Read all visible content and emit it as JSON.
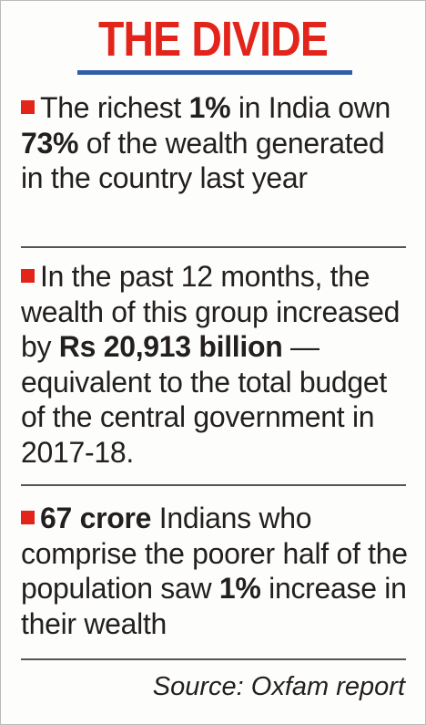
{
  "header": {
    "title": "THE DIVIDE"
  },
  "items": [
    {
      "segments": [
        {
          "text": "The richest ",
          "bold": false
        },
        {
          "text": "1%",
          "bold": true
        },
        {
          "text": " in India own ",
          "bold": false
        },
        {
          "text": "73%",
          "bold": true
        },
        {
          "text": " of the wealth generated in the country last year",
          "bold": false
        }
      ]
    },
    {
      "segments": [
        {
          "text": "In the past 12 months, the wealth of this group increased by ",
          "bold": false
        },
        {
          "text": "Rs 20,913 billion",
          "bold": true
        },
        {
          "text": " — equivalent to the total budget of the central government in 2017-18.",
          "bold": false
        }
      ]
    },
    {
      "segments": [
        {
          "text": "67 crore",
          "bold": true
        },
        {
          "text": " Indians who comprise the poorer half of the population saw ",
          "bold": false
        },
        {
          "text": "1%",
          "bold": true
        },
        {
          "text": " increase in their wealth",
          "bold": false
        }
      ]
    }
  ],
  "source": "Source: Oxfam report"
}
